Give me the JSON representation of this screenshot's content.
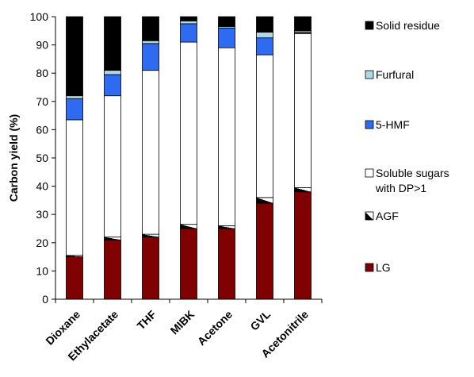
{
  "chart_data": {
    "type": "bar",
    "stacked": true,
    "title": "",
    "xlabel": "",
    "ylabel": "Carbon yield (%)",
    "ylim": [
      0,
      100
    ],
    "yticks": [
      0,
      10,
      20,
      30,
      40,
      50,
      60,
      70,
      80,
      90,
      100
    ],
    "grid": false,
    "legend_position": "right",
    "categories": [
      "Dioxane",
      "Ethylacetate",
      "THF",
      "MIBK",
      "Acetone",
      "GVL",
      "Acetonitrile"
    ],
    "series": [
      {
        "name": "LG",
        "color": "#7f0000",
        "pattern": "solid",
        "values": [
          15,
          21,
          22,
          25,
          25,
          34,
          38
        ]
      },
      {
        "name": "AGF",
        "color": "#000000",
        "pattern": "half-diagonal",
        "values": [
          0.5,
          1,
          1,
          1.5,
          1,
          2,
          1.5
        ]
      },
      {
        "name": "Soluble sugars with DP>1",
        "color": "#ffffff",
        "pattern": "solid",
        "values": [
          48,
          50,
          58,
          64.5,
          63,
          50.5,
          54.5
        ]
      },
      {
        "name": "5-HMF",
        "color": "#2f6bf0",
        "pattern": "solid",
        "values": [
          7.5,
          7.5,
          9.5,
          6.5,
          7,
          6,
          0.5
        ]
      },
      {
        "name": "Furfural",
        "color": "#add8e6",
        "pattern": "solid",
        "values": [
          1,
          1.5,
          1,
          1,
          0.5,
          2,
          0.5
        ]
      },
      {
        "name": "Solid residue",
        "color": "#000000",
        "pattern": "solid",
        "values": [
          28,
          19,
          8.5,
          1.5,
          3.5,
          5.5,
          5
        ]
      }
    ],
    "legend": [
      {
        "lines": [
          "Solid residue"
        ],
        "series_index": 5
      },
      {
        "lines": [
          "Furfural"
        ],
        "series_index": 4
      },
      {
        "lines": [
          "5-HMF"
        ],
        "series_index": 3
      },
      {
        "lines": [
          "Soluble sugars",
          "with DP>1"
        ],
        "series_index": 2
      },
      {
        "lines": [
          "AGF"
        ],
        "series_index": 1
      },
      {
        "lines": [
          "LG"
        ],
        "series_index": 0
      }
    ]
  }
}
